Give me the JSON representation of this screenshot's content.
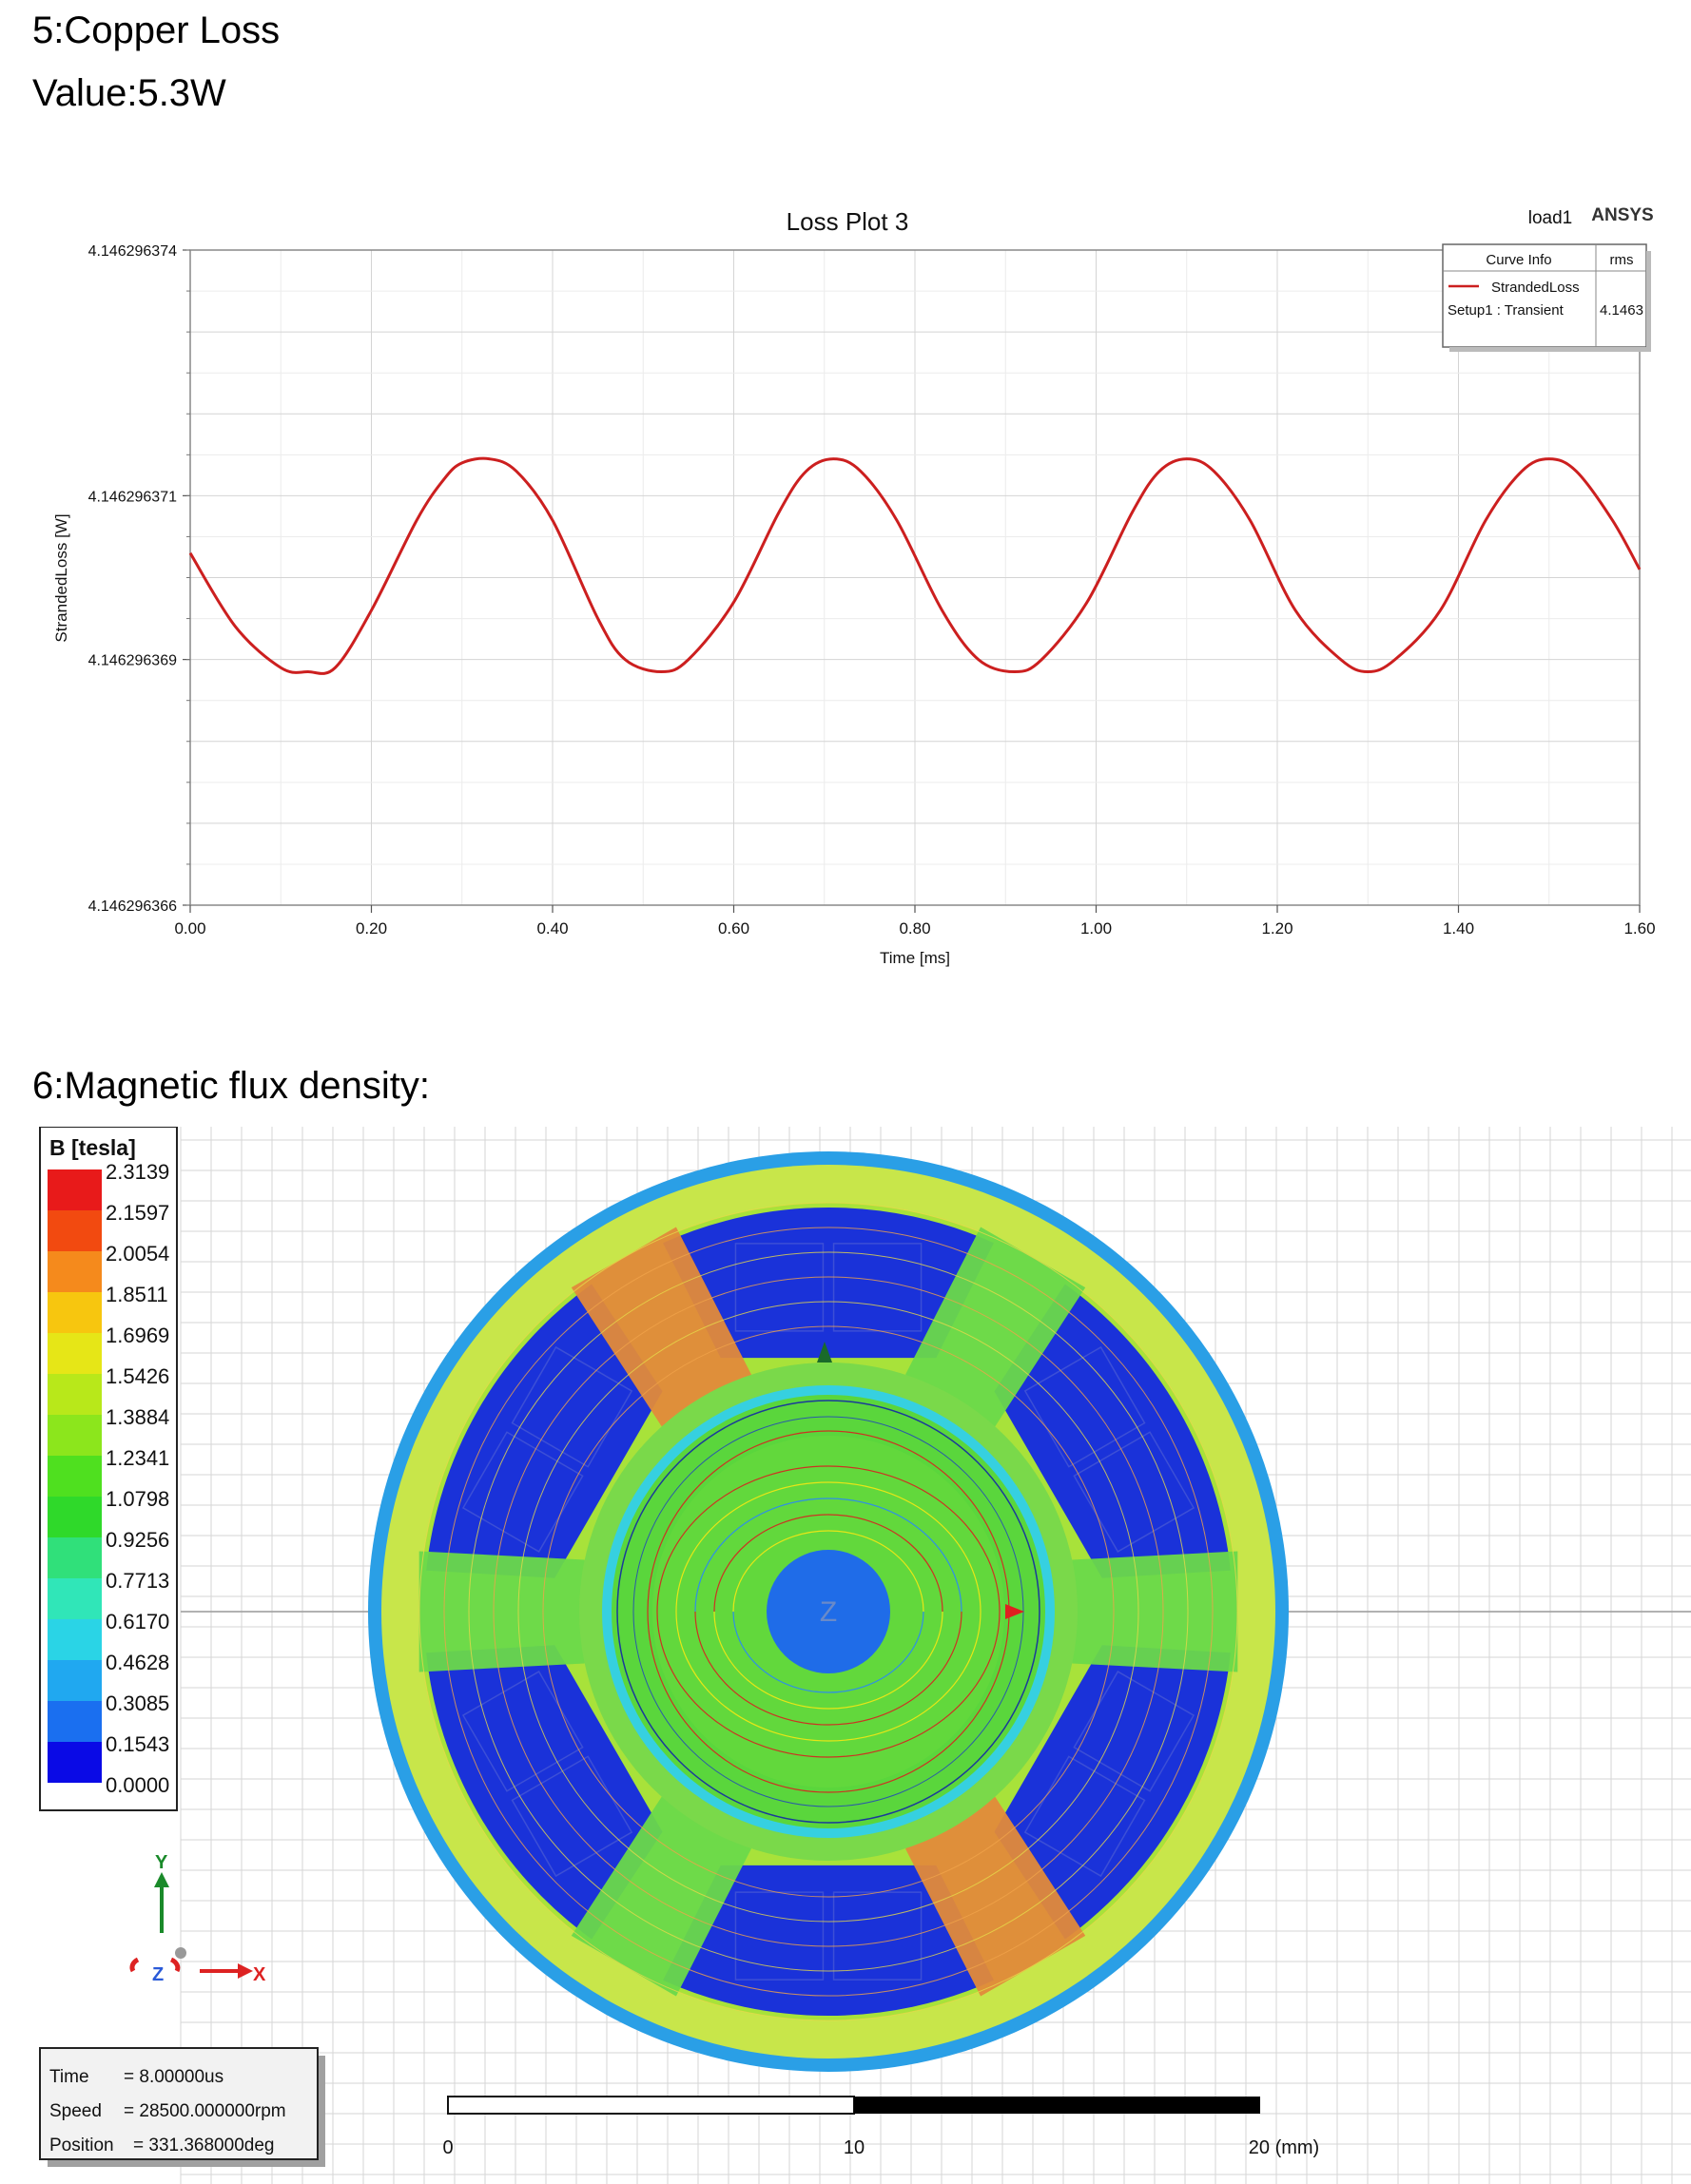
{
  "sections": {
    "copper_loss_title": "5:Copper Loss",
    "copper_loss_value": "Value:5.3W",
    "flux_title": "6:Magnetic flux density:"
  },
  "chart_data": {
    "type": "line",
    "title": "Loss Plot 3",
    "tag_left": "load1",
    "tag_right": "ANSYS",
    "xlabel": "Time [ms]",
    "ylabel": "StrandedLoss [W]",
    "xlim": [
      0,
      1.6
    ],
    "ylim": [
      4.146296366,
      4.146296374
    ],
    "x_ticks": [
      "0.00",
      "0.20",
      "0.40",
      "0.60",
      "0.80",
      "1.00",
      "1.20",
      "1.40",
      "1.60"
    ],
    "y_ticks": [
      "4.146296374",
      "4.146296371",
      "4.146296369",
      "4.146296366"
    ],
    "y_tick_values": [
      4.146296374,
      4.146296371,
      4.146296369,
      4.146296366
    ],
    "legend": {
      "header": "Curve Info",
      "stat_header": "rms",
      "name": "StrandedLoss",
      "setup": "Setup1 : Transient",
      "stat_value": "4.1463"
    },
    "series": [
      {
        "name": "StrandedLoss",
        "color": "#cc1f1f",
        "x": [
          0.0,
          0.05,
          0.1,
          0.13,
          0.16,
          0.2,
          0.25,
          0.28,
          0.3,
          0.33,
          0.36,
          0.4,
          0.45,
          0.48,
          0.52,
          0.55,
          0.6,
          0.65,
          0.68,
          0.71,
          0.74,
          0.78,
          0.83,
          0.87,
          0.91,
          0.94,
          0.99,
          1.04,
          1.07,
          1.1,
          1.13,
          1.17,
          1.22,
          1.27,
          1.3,
          1.33,
          1.38,
          1.43,
          1.47,
          1.5,
          1.53,
          1.57,
          1.6
        ],
        "y": [
          4.1462963703,
          4.1462963694,
          4.1462963689,
          4.14629636885,
          4.1462963689,
          4.1462963696,
          4.1462963707,
          4.1462963712,
          4.1462963714,
          4.14629637145,
          4.1462963713,
          4.1462963707,
          4.1462963695,
          4.146296369,
          4.14629636885,
          4.146296369,
          4.1462963697,
          4.1462963708,
          4.1462963713,
          4.14629637145,
          4.1462963713,
          4.1462963707,
          4.1462963696,
          4.146296369,
          4.14629636885,
          4.146296369,
          4.1462963697,
          4.1462963708,
          4.1462963713,
          4.14629637145,
          4.1462963713,
          4.1462963707,
          4.1462963696,
          4.146296369,
          4.14629636885,
          4.146296369,
          4.1462963696,
          4.1462963707,
          4.1462963713,
          4.14629637145,
          4.1462963713,
          4.1462963707,
          4.1462963701
        ]
      }
    ]
  },
  "flux_plot": {
    "legend_title": "B [tesla]",
    "legend_values": [
      "2.3139",
      "2.1597",
      "2.0054",
      "1.8511",
      "1.6969",
      "1.5426",
      "1.3884",
      "1.2341",
      "1.0798",
      "0.9256",
      "0.7713",
      "0.6170",
      "0.4628",
      "0.3085",
      "0.1543",
      "0.0000"
    ],
    "legend_colors": [
      "#e81a1a",
      "#f24a10",
      "#f58a1c",
      "#f7c60f",
      "#e6e617",
      "#b8e81a",
      "#8ce61c",
      "#4fe01f",
      "#2fd92a",
      "#30e07a",
      "#30e6b8",
      "#2ad4e6",
      "#20a8f0",
      "#1a6ff0",
      "#1430e8",
      "#0a0ae6"
    ],
    "axis_labels": {
      "y": "Y",
      "x": "X",
      "z": "Z"
    },
    "info": [
      {
        "label": "Time",
        "value": "= 8.00000us"
      },
      {
        "label": "Speed",
        "value": "= 28500.000000rpm"
      },
      {
        "label": "Position",
        "value": "= 331.368000deg"
      }
    ],
    "scale": {
      "min_label": "0",
      "mid_label": "10",
      "max_label": "20 (mm)"
    },
    "colors": {
      "stator_yoke": "#c8e64a",
      "slot": "#1a32d9",
      "background_air": "#2ad0e6",
      "tooth": "#6ad94a",
      "rotor": "#58d83a",
      "shaft": "#1f6ce8"
    }
  }
}
